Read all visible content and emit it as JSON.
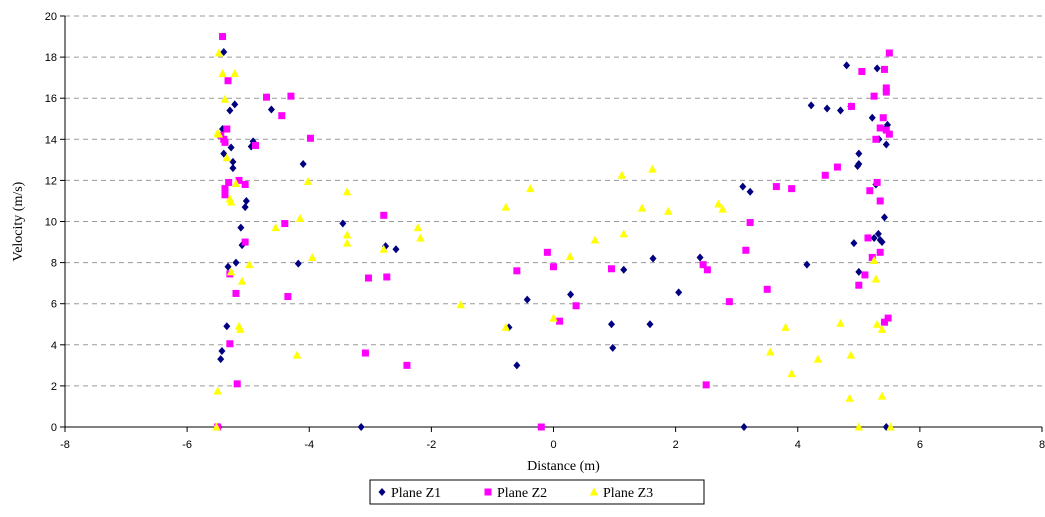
{
  "chart_data": {
    "type": "scatter",
    "title": "",
    "xlabel": "Distance (m)",
    "ylabel": "Velocity (m/s)",
    "xlim": [
      -8,
      8
    ],
    "ylim": [
      0,
      20
    ],
    "x_ticks": [
      -8,
      -6,
      -4,
      -2,
      0,
      2,
      4,
      6,
      8
    ],
    "y_ticks": [
      0,
      2,
      4,
      6,
      8,
      10,
      12,
      14,
      16,
      18,
      20
    ],
    "grid": "horizontal dashed",
    "legend_position": "bottom",
    "series": [
      {
        "name": "Plane Z1",
        "marker": "diamond",
        "color": "#000080",
        "points": [
          [
            -5.48,
            0
          ],
          [
            -5.45,
            3.3
          ],
          [
            -5.43,
            3.7
          ],
          [
            -5.42,
            14.5
          ],
          [
            -5.4,
            18.25
          ],
          [
            -5.4,
            13.3
          ],
          [
            -5.35,
            4.9
          ],
          [
            -5.33,
            7.8
          ],
          [
            -5.3,
            15.4
          ],
          [
            -5.28,
            13.6
          ],
          [
            -5.25,
            12.6
          ],
          [
            -5.25,
            12.9
          ],
          [
            -5.22,
            15.7
          ],
          [
            -5.2,
            8.0
          ],
          [
            -5.12,
            9.7
          ],
          [
            -5.1,
            8.85
          ],
          [
            -5.05,
            10.7
          ],
          [
            -5.03,
            11.0
          ],
          [
            -4.95,
            13.65
          ],
          [
            -4.92,
            13.9
          ],
          [
            -4.62,
            15.45
          ],
          [
            -4.1,
            12.8
          ],
          [
            -4.18,
            7.95
          ],
          [
            -3.45,
            9.9
          ],
          [
            -2.75,
            8.8
          ],
          [
            -2.58,
            8.65
          ],
          [
            -3.15,
            0
          ],
          [
            -0.73,
            4.85
          ],
          [
            -0.6,
            3.0
          ],
          [
            -0.43,
            6.2
          ],
          [
            0.28,
            6.45
          ],
          [
            0.95,
            5.0
          ],
          [
            0.97,
            3.85
          ],
          [
            1.15,
            7.65
          ],
          [
            1.58,
            5.0
          ],
          [
            1.63,
            8.2
          ],
          [
            2.05,
            6.55
          ],
          [
            2.4,
            8.25
          ],
          [
            3.1,
            11.7
          ],
          [
            3.22,
            11.45
          ],
          [
            3.12,
            0
          ],
          [
            4.15,
            7.9
          ],
          [
            4.22,
            15.65
          ],
          [
            4.48,
            15.5
          ],
          [
            4.7,
            15.4
          ],
          [
            4.8,
            17.6
          ],
          [
            4.87,
            15.6
          ],
          [
            4.92,
            8.95
          ],
          [
            4.98,
            12.7
          ],
          [
            5.0,
            12.8
          ],
          [
            5.0,
            13.3
          ],
          [
            5.0,
            7.55
          ],
          [
            5.22,
            15.05
          ],
          [
            5.25,
            9.2
          ],
          [
            5.28,
            11.8
          ],
          [
            5.3,
            17.45
          ],
          [
            5.32,
            9.4
          ],
          [
            5.33,
            14.0
          ],
          [
            5.35,
            9.1
          ],
          [
            5.38,
            9.0
          ],
          [
            5.42,
            10.2
          ],
          [
            5.43,
            14.5
          ],
          [
            5.45,
            13.75
          ],
          [
            5.47,
            14.7
          ],
          [
            5.45,
            0
          ]
        ]
      },
      {
        "name": "Plane Z2",
        "marker": "square",
        "color": "#FF00FF",
        "points": [
          [
            -5.5,
            0
          ],
          [
            -5.42,
            19.0
          ],
          [
            -5.45,
            14.2
          ],
          [
            -5.4,
            14.0
          ],
          [
            -5.38,
            13.85
          ],
          [
            -5.38,
            11.6
          ],
          [
            -5.38,
            11.3
          ],
          [
            -5.35,
            14.5
          ],
          [
            -5.33,
            16.85
          ],
          [
            -5.32,
            11.9
          ],
          [
            -5.3,
            4.05
          ],
          [
            -5.3,
            7.45
          ],
          [
            -5.2,
            6.5
          ],
          [
            -5.18,
            2.1
          ],
          [
            -5.15,
            12.0
          ],
          [
            -5.05,
            11.8
          ],
          [
            -5.05,
            9.0
          ],
          [
            -4.88,
            13.7
          ],
          [
            -4.7,
            16.05
          ],
          [
            -4.45,
            15.15
          ],
          [
            -4.4,
            9.9
          ],
          [
            -4.35,
            6.35
          ],
          [
            -4.3,
            16.1
          ],
          [
            -3.98,
            14.05
          ],
          [
            -3.08,
            3.6
          ],
          [
            -3.03,
            7.25
          ],
          [
            -2.78,
            10.3
          ],
          [
            -2.73,
            7.3
          ],
          [
            -2.4,
            3.0
          ],
          [
            -0.6,
            7.6
          ],
          [
            -0.2,
            0
          ],
          [
            -0.1,
            8.5
          ],
          [
            0.0,
            7.8
          ],
          [
            0.1,
            5.15
          ],
          [
            0.37,
            5.9
          ],
          [
            0.95,
            7.7
          ],
          [
            2.45,
            7.9
          ],
          [
            2.5,
            2.05
          ],
          [
            2.52,
            7.65
          ],
          [
            2.88,
            6.1
          ],
          [
            3.15,
            8.6
          ],
          [
            3.22,
            9.95
          ],
          [
            3.5,
            6.7
          ],
          [
            3.65,
            11.7
          ],
          [
            3.9,
            11.6
          ],
          [
            4.45,
            12.25
          ],
          [
            4.65,
            12.65
          ],
          [
            4.88,
            15.6
          ],
          [
            5.0,
            6.9
          ],
          [
            5.05,
            17.3
          ],
          [
            5.1,
            7.4
          ],
          [
            5.15,
            9.2
          ],
          [
            5.18,
            11.5
          ],
          [
            5.22,
            8.25
          ],
          [
            5.25,
            16.1
          ],
          [
            5.28,
            14.0
          ],
          [
            5.3,
            11.9
          ],
          [
            5.35,
            8.5
          ],
          [
            5.35,
            11.0
          ],
          [
            5.35,
            14.55
          ],
          [
            5.4,
            15.05
          ],
          [
            5.42,
            5.1
          ],
          [
            5.42,
            17.4
          ],
          [
            5.45,
            14.45
          ],
          [
            5.45,
            16.3
          ],
          [
            5.45,
            16.5
          ],
          [
            5.48,
            5.3
          ],
          [
            5.5,
            14.25
          ],
          [
            5.5,
            18.2
          ]
        ]
      },
      {
        "name": "Plane Z3",
        "marker": "triangle",
        "color": "#FFFF00",
        "points": [
          [
            -5.52,
            0
          ],
          [
            -5.5,
            1.75
          ],
          [
            -5.5,
            14.3
          ],
          [
            -5.48,
            14.25
          ],
          [
            -5.48,
            18.2
          ],
          [
            -5.42,
            17.2
          ],
          [
            -5.38,
            15.95
          ],
          [
            -5.35,
            13.1
          ],
          [
            -5.3,
            11.1
          ],
          [
            -5.28,
            10.95
          ],
          [
            -5.28,
            7.55
          ],
          [
            -5.22,
            17.2
          ],
          [
            -5.2,
            11.85
          ],
          [
            -5.15,
            4.9
          ],
          [
            -5.13,
            4.75
          ],
          [
            -5.1,
            7.1
          ],
          [
            -4.98,
            7.9
          ],
          [
            -4.55,
            9.7
          ],
          [
            -4.2,
            3.5
          ],
          [
            -4.15,
            10.15
          ],
          [
            -4.02,
            11.95
          ],
          [
            -3.95,
            8.25
          ],
          [
            -3.38,
            11.45
          ],
          [
            -3.38,
            9.35
          ],
          [
            -3.38,
            8.95
          ],
          [
            -2.78,
            8.65
          ],
          [
            -2.22,
            9.7
          ],
          [
            -2.18,
            9.2
          ],
          [
            -1.52,
            5.95
          ],
          [
            -0.78,
            10.7
          ],
          [
            -0.78,
            4.85
          ],
          [
            -0.38,
            11.6
          ],
          [
            0.0,
            5.3
          ],
          [
            0.27,
            8.3
          ],
          [
            0.68,
            9.1
          ],
          [
            1.12,
            12.25
          ],
          [
            1.15,
            9.4
          ],
          [
            1.45,
            10.65
          ],
          [
            1.62,
            12.55
          ],
          [
            1.88,
            10.5
          ],
          [
            2.7,
            10.85
          ],
          [
            2.77,
            10.6
          ],
          [
            3.55,
            3.65
          ],
          [
            3.8,
            4.85
          ],
          [
            3.9,
            2.6
          ],
          [
            4.33,
            3.3
          ],
          [
            4.7,
            5.05
          ],
          [
            4.85,
            1.4
          ],
          [
            4.87,
            3.5
          ],
          [
            5.0,
            0
          ],
          [
            5.25,
            8.1
          ],
          [
            5.28,
            7.2
          ],
          [
            5.3,
            5.0
          ],
          [
            5.38,
            1.5
          ],
          [
            5.38,
            4.75
          ],
          [
            5.52,
            0
          ]
        ]
      }
    ]
  }
}
